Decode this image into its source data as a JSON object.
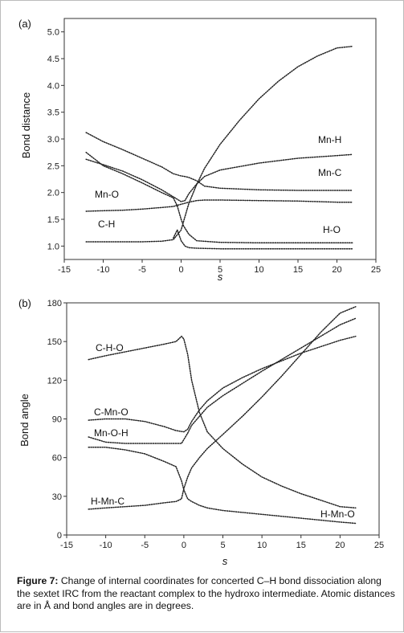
{
  "figure": {
    "caption_label": "Figure 7:",
    "caption_text": "Change of internal coordinates for concerted C–H bond dissociation along the sextet IRC from the reactant complex to the hydroxo intermediate. Atomic distances are in Å and bond angles are in degrees."
  },
  "chart_data": [
    {
      "panel": "(a)",
      "type": "line",
      "xlabel": "s",
      "ylabel": "Bond distance",
      "xlim": [
        -15,
        25
      ],
      "ylim": [
        0.75,
        5.25
      ],
      "xticks": [
        -15,
        -10,
        -5,
        0,
        5,
        10,
        15,
        20,
        25
      ],
      "yticks": [
        1.0,
        1.5,
        2.0,
        2.5,
        3.0,
        3.5,
        4.0,
        4.5,
        5.0
      ],
      "ytick_labels": [
        "1.0",
        "1.5",
        "2.0",
        "2.5",
        "3.0",
        "3.5",
        "4.0",
        "4.5",
        "5.0"
      ],
      "line_style": "dotted",
      "series": [
        {
          "name": "Mn-H",
          "x": [
            -12.2,
            -10,
            -7.5,
            -5,
            -2.5,
            -1,
            0,
            0.5,
            1,
            2,
            3,
            5,
            10,
            15,
            20,
            22
          ],
          "y": [
            2.62,
            2.52,
            2.4,
            2.24,
            2.05,
            1.92,
            1.83,
            1.85,
            1.98,
            2.16,
            2.3,
            2.42,
            2.55,
            2.64,
            2.69,
            2.71
          ]
        },
        {
          "name": "Mn-C",
          "x": [
            -12.2,
            -10,
            -7.5,
            -5,
            -2.5,
            -1,
            0,
            0.5,
            1,
            2,
            3,
            5,
            10,
            15,
            20,
            22
          ],
          "y": [
            3.12,
            2.95,
            2.8,
            2.64,
            2.48,
            2.35,
            2.31,
            2.3,
            2.28,
            2.22,
            2.12,
            2.08,
            2.05,
            2.04,
            2.04,
            2.04
          ]
        },
        {
          "name": "Mn-O",
          "x": [
            -12.2,
            -10,
            -7.5,
            -5,
            -2.5,
            -1,
            0,
            1,
            2,
            3,
            5,
            10,
            15,
            20,
            22
          ],
          "y": [
            1.65,
            1.66,
            1.67,
            1.69,
            1.72,
            1.74,
            1.78,
            1.82,
            1.85,
            1.86,
            1.86,
            1.85,
            1.84,
            1.82,
            1.82
          ]
        },
        {
          "name": "C-H",
          "x": [
            -12.2,
            -10,
            -7.5,
            -5,
            -2.5,
            -1,
            -0.5,
            0,
            0.3,
            1,
            2,
            5,
            10,
            15,
            20,
            22
          ],
          "y": [
            2.75,
            2.5,
            2.35,
            2.18,
            2.0,
            1.9,
            1.75,
            1.5,
            1.38,
            1.22,
            1.1,
            1.07,
            1.06,
            1.06,
            1.06,
            1.06
          ]
        },
        {
          "name": "H-O",
          "x": [
            -12.2,
            -10,
            -7.5,
            -5,
            -2.5,
            -1,
            0,
            0.5,
            1,
            2,
            3,
            5,
            7.5,
            10,
            12.5,
            15,
            17.5,
            20,
            22
          ],
          "y": [
            1.08,
            1.08,
            1.08,
            1.08,
            1.09,
            1.12,
            1.3,
            1.55,
            1.8,
            2.15,
            2.45,
            2.9,
            3.35,
            3.75,
            4.08,
            4.35,
            4.55,
            4.7,
            4.73
          ]
        },
        {
          "name": "",
          "x": [
            -1,
            -0.5,
            0,
            0.5,
            1,
            2,
            5,
            10,
            15,
            20,
            22
          ],
          "y": [
            1.15,
            1.3,
            1.1,
            1.0,
            0.97,
            0.96,
            0.95,
            0.95,
            0.95,
            0.95,
            0.95
          ]
        }
      ]
    },
    {
      "panel": "(b)",
      "type": "line",
      "xlabel": "s",
      "ylabel": "Bond angle",
      "xlim": [
        -15,
        25
      ],
      "ylim": [
        0,
        180
      ],
      "xticks": [
        -15,
        -10,
        -5,
        0,
        5,
        10,
        15,
        20,
        25
      ],
      "yticks": [
        0,
        30,
        60,
        90,
        120,
        150,
        180
      ],
      "ytick_labels": [
        "0",
        "30",
        "60",
        "90",
        "120",
        "150",
        "180"
      ],
      "line_style": "dotted",
      "series": [
        {
          "name": "C-H-O",
          "x": [
            -12.2,
            -10,
            -7.5,
            -5,
            -2.5,
            -1,
            -0.3,
            0,
            0.5,
            1,
            2,
            3,
            5,
            7.5,
            10,
            12.5,
            15,
            17.5,
            20,
            22
          ],
          "y": [
            136,
            139,
            142,
            145,
            148,
            150,
            154,
            152,
            140,
            120,
            95,
            80,
            67,
            55,
            45,
            38,
            32,
            27,
            22,
            21
          ]
        },
        {
          "name": "C-Mn-O",
          "x": [
            -12.2,
            -10,
            -7.5,
            -5,
            -2.5,
            -1,
            0,
            0.5,
            1,
            2,
            3,
            5,
            7.5,
            10,
            12.5,
            15,
            17.5,
            20,
            22
          ],
          "y": [
            89,
            90,
            90,
            88,
            84,
            81,
            80,
            82,
            88,
            97,
            104,
            114,
            122,
            129,
            135,
            141,
            146,
            151,
            154
          ]
        },
        {
          "name": "Mn-O-H",
          "x": [
            -12.2,
            -10,
            -7.5,
            -5,
            -2.5,
            -1,
            -0.3,
            0,
            0.5,
            1,
            2,
            3,
            5,
            10,
            15,
            20,
            22
          ],
          "y": [
            76,
            72,
            71,
            71,
            71,
            71,
            71,
            74,
            79,
            85,
            92,
            99,
            108,
            127,
            145,
            163,
            168
          ]
        },
        {
          "name": "H-Mn-C",
          "x": [
            -12.2,
            -10,
            -7.5,
            -5,
            -2.5,
            -1,
            -0.3,
            0,
            0.5,
            1,
            2,
            3,
            5,
            10,
            15,
            20,
            22
          ],
          "y": [
            68,
            68,
            66,
            63,
            57,
            53,
            42,
            35,
            28,
            26,
            23,
            21,
            19,
            16,
            13,
            10,
            9
          ]
        },
        {
          "name": "H-Mn-O",
          "x": [
            -12.2,
            -10,
            -7.5,
            -5,
            -2.5,
            -1,
            -0.3,
            0,
            0.5,
            1,
            2,
            3,
            5,
            7.5,
            10,
            12.5,
            15,
            17.5,
            20,
            22
          ],
          "y": [
            20,
            21,
            22,
            23,
            25,
            26,
            28,
            36,
            45,
            52,
            60,
            67,
            78,
            92,
            107,
            123,
            140,
            157,
            172,
            177
          ]
        }
      ],
      "labels": [
        "C-H-O",
        "C-Mn-O",
        "Mn-O-H",
        "H-Mn-C",
        "H-Mn-O"
      ]
    }
  ],
  "series_labels_a": [
    "Mn-H",
    "Mn-C",
    "Mn-O",
    "C-H",
    "H-O"
  ]
}
